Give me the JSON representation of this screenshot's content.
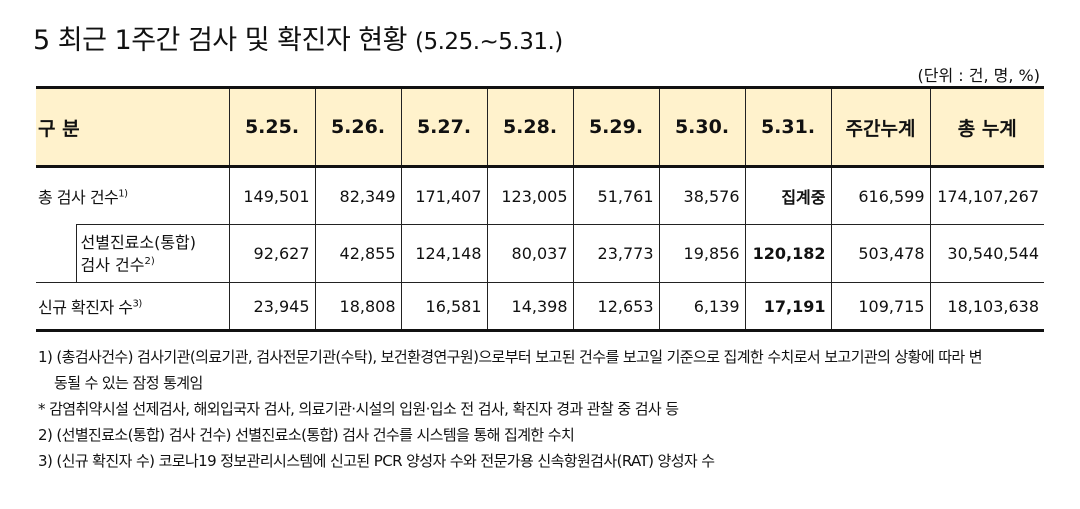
{
  "title": {
    "main": "5  최근 1주간 검사 및 확진자 현황 ",
    "range": "(5.25.~5.31.)"
  },
  "unit": "(단위 : 건, 명, %)",
  "table": {
    "header_label": "구 분",
    "columns": [
      "5.25.",
      "5.26.",
      "5.27.",
      "5.28.",
      "5.29.",
      "5.30.",
      "5.31.",
      "주간누계",
      "총 누계"
    ],
    "rows": [
      {
        "label": "총 검사 건수",
        "sup": "1)",
        "values": [
          "149,501",
          "82,349",
          "171,407",
          "123,005",
          "51,761",
          "38,576",
          "집계중",
          "616,599",
          "174,107,267"
        ]
      },
      {
        "label_line1": "선별진료소(통합)",
        "label_line2": "검사 건수",
        "sup": "2)",
        "values": [
          "92,627",
          "42,855",
          "124,148",
          "80,037",
          "23,773",
          "19,856",
          "120,182",
          "503,478",
          "30,540,544"
        ]
      },
      {
        "label": "신규 확진자 수",
        "sup": "3)",
        "values": [
          "23,945",
          "18,808",
          "16,581",
          "14,398",
          "12,653",
          "6,139",
          "17,191",
          "109,715",
          "18,103,638"
        ]
      }
    ]
  },
  "notes": [
    "1) (총검사건수) 검사기관(의료기관, 검사전문기관(수탁), 보건환경연구원)으로부터 보고된 건수를 보고일 기준으로 집계한 수치로서 보고기관의 상황에 따라 변",
    "동될 수 있는 잠정 통계임",
    " * 감염취약시설 선제검사, 해외입국자 검사, 의료기관·시설의 입원·입소 전 검사, 확진자 경과 관찰 중 검사 등",
    "2) (선별진료소(통합) 검사 건수) 선별진료소(통합) 검사 건수를 시스템을 통해 집계한 수치",
    "3) (신규 확진자 수) 코로나19 정보관리시스템에 신고된 PCR 양성자 수와 전문가용 신속항원검사(RAT) 양성자 수"
  ]
}
